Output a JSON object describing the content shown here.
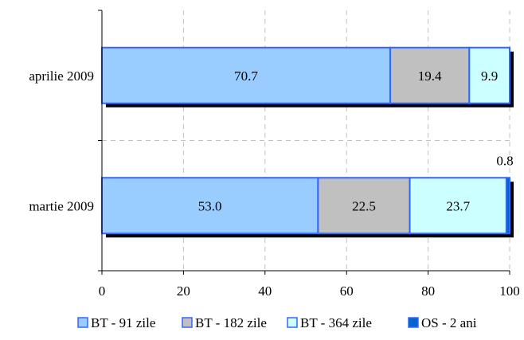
{
  "chart_data": {
    "type": "bar",
    "orientation": "horizontal",
    "stacked": true,
    "title": "",
    "xlabel": "",
    "ylabel": "",
    "xlim": [
      0,
      100
    ],
    "x_ticks": [
      "0",
      "20",
      "40",
      "60",
      "80",
      "100"
    ],
    "grid": true,
    "legend_position": "bottom",
    "categories": [
      "aprilie 2009",
      "martie 2009"
    ],
    "series": [
      {
        "name": "BT - 91 zile",
        "color": "#99CCFF",
        "values": [
          70.7,
          53.0
        ],
        "labels": [
          "70.7",
          "53.0"
        ]
      },
      {
        "name": "BT - 182 zile",
        "color": "#C0C0C0",
        "values": [
          19.4,
          22.5
        ],
        "labels": [
          "19.4",
          "22.5"
        ]
      },
      {
        "name": "BT - 364 zile",
        "color": "#CCFFFF",
        "values": [
          9.9,
          23.7
        ],
        "labels": [
          "9.9",
          "23.7"
        ]
      },
      {
        "name": "OS - 2 ani",
        "color": "#0066CC",
        "values": [
          0.0,
          0.8
        ],
        "labels": [
          "",
          "0.8"
        ]
      }
    ]
  }
}
